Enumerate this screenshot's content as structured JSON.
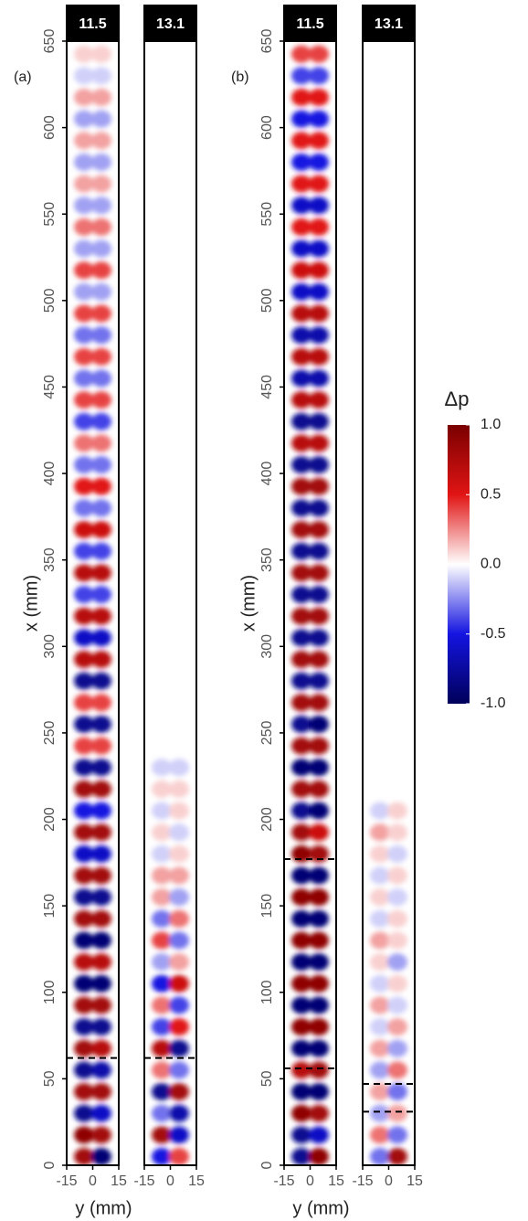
{
  "chart_data": [
    {
      "type": "heatmap",
      "title": "11.5",
      "panel_label": "(a)",
      "y_label": "x (mm)",
      "x_label": "y (mm)",
      "xlim": [
        -15,
        15
      ],
      "xticks": [
        -15,
        0,
        15
      ],
      "ylim": [
        0,
        650
      ],
      "yticks": [
        0,
        50,
        100,
        150,
        200,
        250,
        300,
        350,
        400,
        450,
        500,
        550,
        600,
        650
      ],
      "columns": [
        -5,
        5
      ],
      "rows": [
        5,
        17.5,
        30,
        42.5,
        55,
        67.5,
        80,
        92.5,
        105,
        117.5,
        130,
        142.5,
        155,
        167.5,
        180,
        192.5,
        205,
        217.5,
        230,
        242.5,
        255,
        267.5,
        280,
        292.5,
        305,
        317.5,
        330,
        342.5,
        355,
        367.5,
        380,
        392.5,
        405,
        417.5,
        430,
        442.5,
        455,
        467.5,
        480,
        492.5,
        505,
        517.5,
        530,
        542.5,
        555,
        567.5,
        580,
        592.5,
        605,
        617.5,
        630,
        642.5
      ],
      "values": [
        [
          0.8,
          -0.9
        ],
        [
          0.9,
          0.8
        ],
        [
          -0.8,
          -0.6
        ],
        [
          0.8,
          0.8
        ],
        [
          -0.8,
          -0.7
        ],
        [
          0.8,
          0.7
        ],
        [
          -0.8,
          -0.8
        ],
        [
          0.8,
          0.8
        ],
        [
          -0.9,
          -0.9
        ],
        [
          0.7,
          0.7
        ],
        [
          -0.9,
          -0.9
        ],
        [
          0.8,
          0.8
        ],
        [
          -0.8,
          -0.8
        ],
        [
          0.8,
          0.8
        ],
        [
          -0.6,
          -0.6
        ],
        [
          0.8,
          0.8
        ],
        [
          -0.5,
          -0.5
        ],
        [
          0.8,
          0.8
        ],
        [
          -0.8,
          -0.8
        ],
        [
          0.4,
          0.4
        ],
        [
          -0.8,
          -0.8
        ],
        [
          0.4,
          0.4
        ],
        [
          -0.8,
          -0.8
        ],
        [
          0.7,
          0.7
        ],
        [
          -0.6,
          -0.6
        ],
        [
          0.7,
          0.7
        ],
        [
          -0.4,
          -0.4
        ],
        [
          0.7,
          0.7
        ],
        [
          -0.4,
          -0.4
        ],
        [
          0.6,
          0.6
        ],
        [
          -0.3,
          -0.3
        ],
        [
          0.5,
          0.5
        ],
        [
          -0.3,
          -0.3
        ],
        [
          0.3,
          0.3
        ],
        [
          -0.4,
          -0.4
        ],
        [
          0.4,
          0.4
        ],
        [
          -0.3,
          -0.3
        ],
        [
          0.4,
          0.4
        ],
        [
          -0.3,
          -0.3
        ],
        [
          0.4,
          0.4
        ],
        [
          -0.2,
          -0.2
        ],
        [
          0.4,
          0.4
        ],
        [
          -0.2,
          -0.2
        ],
        [
          0.3,
          0.3
        ],
        [
          -0.2,
          -0.2
        ],
        [
          0.2,
          0.2
        ],
        [
          -0.2,
          -0.2
        ],
        [
          0.2,
          0.2
        ],
        [
          -0.2,
          -0.2
        ],
        [
          0.2,
          0.2
        ],
        [
          -0.1,
          -0.1
        ],
        [
          0.1,
          0.1
        ]
      ],
      "dashed_lines": [
        62
      ]
    },
    {
      "type": "heatmap",
      "title": "13.1",
      "xlim": [
        -15,
        15
      ],
      "xticks": [
        -15,
        0,
        15
      ],
      "ylim": [
        0,
        650
      ],
      "columns": [
        -5,
        5
      ],
      "rows": [
        5,
        17.5,
        30,
        42.5,
        55,
        67.5,
        80,
        92.5,
        105,
        117.5,
        130,
        142.5,
        155,
        167.5,
        180,
        192.5,
        205,
        217.5,
        230
      ],
      "values": [
        [
          -0.5,
          0.4
        ],
        [
          0.8,
          -0.6
        ],
        [
          -0.3,
          -0.7
        ],
        [
          -0.8,
          0.8
        ],
        [
          0.3,
          -0.3
        ],
        [
          0.7,
          -0.8
        ],
        [
          -0.4,
          0.5
        ],
        [
          0.3,
          -0.4
        ],
        [
          -0.5,
          0.6
        ],
        [
          -0.2,
          0.2
        ],
        [
          0.4,
          -0.3
        ],
        [
          -0.3,
          0.3
        ],
        [
          0.2,
          -0.2
        ],
        [
          0.2,
          0.2
        ],
        [
          -0.1,
          0.1
        ],
        [
          0.1,
          -0.1
        ],
        [
          -0.1,
          0.1
        ],
        [
          0.1,
          0.1
        ],
        [
          -0.1,
          -0.1
        ]
      ],
      "dashed_lines": [
        62
      ]
    },
    {
      "type": "heatmap",
      "title": "11.5",
      "panel_label": "(b)",
      "y_label": "x (mm)",
      "x_label": "y (mm)",
      "xlim": [
        -15,
        15
      ],
      "xticks": [
        -15,
        0,
        15
      ],
      "ylim": [
        0,
        650
      ],
      "yticks": [
        0,
        50,
        100,
        150,
        200,
        250,
        300,
        350,
        400,
        450,
        500,
        550,
        600,
        650
      ],
      "columns": [
        -5,
        5
      ],
      "rows": [
        5,
        17.5,
        30,
        42.5,
        55,
        67.5,
        80,
        92.5,
        105,
        117.5,
        130,
        142.5,
        155,
        167.5,
        180,
        192.5,
        205,
        217.5,
        230,
        242.5,
        255,
        267.5,
        280,
        292.5,
        305,
        317.5,
        330,
        342.5,
        355,
        367.5,
        380,
        392.5,
        405,
        417.5,
        430,
        442.5,
        455,
        467.5,
        480,
        492.5,
        505,
        517.5,
        530,
        542.5,
        555,
        567.5,
        580,
        592.5,
        605,
        617.5,
        630,
        642.5
      ],
      "values": [
        [
          -0.8,
          0.9
        ],
        [
          -0.8,
          -0.6
        ],
        [
          0.9,
          0.8
        ],
        [
          -0.9,
          -0.9
        ],
        [
          0.7,
          0.8
        ],
        [
          -0.9,
          -0.9
        ],
        [
          0.9,
          0.9
        ],
        [
          -0.9,
          -0.9
        ],
        [
          0.9,
          0.9
        ],
        [
          -0.9,
          -0.9
        ],
        [
          0.9,
          0.9
        ],
        [
          -0.9,
          -0.9
        ],
        [
          0.9,
          0.9
        ],
        [
          -0.9,
          -0.9
        ],
        [
          0.9,
          0.8
        ],
        [
          0.8,
          0.6
        ],
        [
          -0.8,
          -0.9
        ],
        [
          0.8,
          0.8
        ],
        [
          -0.9,
          -0.9
        ],
        [
          0.8,
          0.8
        ],
        [
          -0.8,
          -0.9
        ],
        [
          0.8,
          0.8
        ],
        [
          -0.8,
          -0.8
        ],
        [
          0.8,
          0.8
        ],
        [
          -0.8,
          -0.8
        ],
        [
          0.8,
          0.8
        ],
        [
          -0.8,
          -0.8
        ],
        [
          0.8,
          0.8
        ],
        [
          -0.8,
          -0.8
        ],
        [
          0.8,
          0.8
        ],
        [
          -0.8,
          -0.8
        ],
        [
          0.8,
          0.8
        ],
        [
          -0.8,
          -0.8
        ],
        [
          0.7,
          0.7
        ],
        [
          -0.8,
          -0.8
        ],
        [
          0.7,
          0.7
        ],
        [
          -0.7,
          -0.7
        ],
        [
          0.7,
          0.7
        ],
        [
          -0.7,
          -0.7
        ],
        [
          0.7,
          0.7
        ],
        [
          -0.6,
          -0.6
        ],
        [
          0.6,
          0.6
        ],
        [
          -0.6,
          -0.6
        ],
        [
          0.5,
          0.5
        ],
        [
          -0.6,
          -0.6
        ],
        [
          0.5,
          0.5
        ],
        [
          -0.5,
          -0.5
        ],
        [
          0.5,
          0.5
        ],
        [
          -0.5,
          -0.5
        ],
        [
          0.5,
          0.5
        ],
        [
          -0.4,
          -0.4
        ],
        [
          0.4,
          0.4
        ]
      ],
      "dashed_lines": [
        177,
        56
      ]
    },
    {
      "type": "heatmap",
      "title": "13.1",
      "xlim": [
        -15,
        15
      ],
      "xticks": [
        -15,
        0,
        15
      ],
      "ylim": [
        0,
        650
      ],
      "columns": [
        -5,
        5
      ],
      "rows": [
        5,
        17.5,
        30,
        42.5,
        55,
        67.5,
        80,
        92.5,
        105,
        117.5,
        130,
        142.5,
        155,
        167.5,
        180,
        192.5,
        205
      ],
      "values": [
        [
          -0.3,
          0.8
        ],
        [
          0.3,
          -0.3
        ],
        [
          -0.2,
          0.2
        ],
        [
          0.2,
          -0.3
        ],
        [
          -0.2,
          0.3
        ],
        [
          0.2,
          -0.2
        ],
        [
          -0.1,
          0.2
        ],
        [
          0.2,
          -0.1
        ],
        [
          -0.1,
          0.1
        ],
        [
          0.1,
          -0.2
        ],
        [
          0.2,
          0.1
        ],
        [
          -0.1,
          0.1
        ],
        [
          0.1,
          -0.1
        ],
        [
          -0.1,
          0.1
        ],
        [
          0.1,
          -0.1
        ],
        [
          0.2,
          0.1
        ],
        [
          -0.1,
          0.1
        ]
      ],
      "dashed_lines": [
        47,
        31
      ]
    },
    {
      "type": "colorbar",
      "title": "Δp",
      "lim": [
        -1,
        1
      ],
      "ticks": [
        {
          "value": 1,
          "label": "1.0"
        },
        0.5,
        {
          "value": 0,
          "label": "0.0"
        },
        -0.5,
        {
          "value": -1,
          "label": "-1.0"
        }
      ]
    }
  ]
}
